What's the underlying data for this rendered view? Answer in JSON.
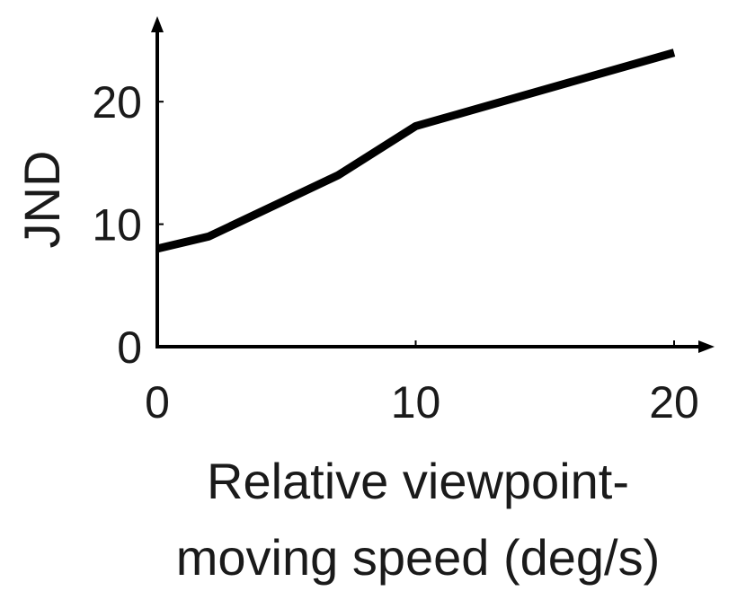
{
  "chart_data": {
    "type": "line",
    "title": "",
    "xlabel_lines": [
      "Relative viewpoint-",
      "moving speed (deg/s)"
    ],
    "ylabel": "JND",
    "xlim": [
      0,
      20
    ],
    "ylim": [
      0,
      25
    ],
    "xticks": [
      0,
      10,
      20
    ],
    "yticks": [
      0,
      10,
      20
    ],
    "grid": false,
    "legend": "none",
    "series": [
      {
        "x": [
          0,
          2,
          7,
          10,
          20
        ],
        "y": [
          8,
          9,
          14,
          18,
          24
        ],
        "color": "#000000"
      }
    ]
  }
}
